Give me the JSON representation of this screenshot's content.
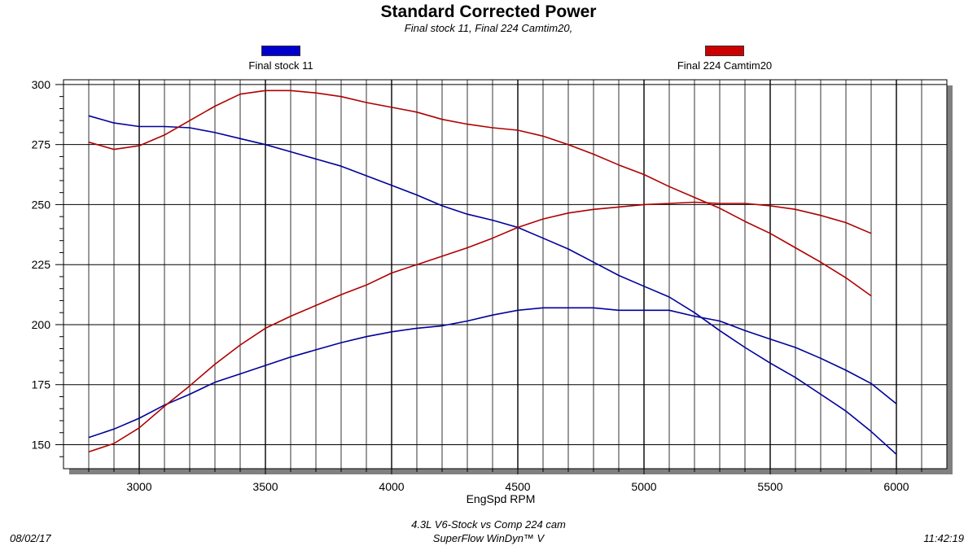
{
  "chart_data": {
    "type": "line",
    "title": "Standard Corrected Power",
    "subtitle": "Final stock 11,  Final 224 Camtim20,",
    "xlabel": "EngSpd RPM",
    "ylabel": "",
    "xlim": [
      2700,
      6200
    ],
    "ylim": [
      140,
      302
    ],
    "x_ticks": [
      3000,
      3500,
      4000,
      4500,
      5000,
      5500,
      6000
    ],
    "y_ticks": [
      150,
      175,
      200,
      225,
      250,
      275,
      300
    ],
    "grid": true,
    "legend": [
      {
        "name": "Final stock 11",
        "color": "#0000cc"
      },
      {
        "name": "Final 224 Camtim20",
        "color": "#cc0000"
      }
    ],
    "series": [
      {
        "name": "Final stock 11",
        "measure": "torque",
        "color": "#00009a",
        "x": [
          2800,
          2900,
          3000,
          3100,
          3200,
          3300,
          3400,
          3500,
          3600,
          3700,
          3800,
          3900,
          4000,
          4100,
          4200,
          4300,
          4400,
          4500,
          4600,
          4700,
          4800,
          4900,
          5000,
          5100,
          5200,
          5300,
          5400,
          5500,
          5600,
          5700,
          5800,
          5900,
          6000
        ],
        "y": [
          287,
          284,
          282.5,
          282.5,
          282,
          280,
          277.5,
          275,
          272,
          269,
          266,
          262,
          258,
          254,
          249.5,
          246,
          243.5,
          240.5,
          236,
          231.5,
          226,
          220.5,
          216,
          211.5,
          205,
          197.5,
          190.5,
          184,
          178,
          171,
          164,
          155.5,
          146
        ]
      },
      {
        "name": "Final stock 11",
        "measure": "power",
        "color": "#00009a",
        "x": [
          2800,
          2900,
          3000,
          3100,
          3200,
          3300,
          3400,
          3500,
          3600,
          3700,
          3800,
          3900,
          4000,
          4100,
          4200,
          4300,
          4400,
          4500,
          4600,
          4700,
          4800,
          4900,
          5000,
          5100,
          5200,
          5300,
          5400,
          5500,
          5600,
          5700,
          5800,
          5900,
          6000
        ],
        "y": [
          153,
          156.5,
          161,
          166.5,
          171,
          176,
          179.5,
          183,
          186.5,
          189.5,
          192.5,
          195,
          197,
          198.5,
          199.5,
          201.5,
          204,
          206,
          207,
          207,
          207,
          206,
          206,
          206,
          203.5,
          201.5,
          197.5,
          194,
          190.5,
          186,
          181,
          175.5,
          167
        ]
      },
      {
        "name": "Final 224 Camtim20",
        "measure": "torque",
        "color": "#b00000",
        "x": [
          2800,
          2900,
          3000,
          3100,
          3200,
          3300,
          3400,
          3500,
          3600,
          3700,
          3800,
          3900,
          4000,
          4100,
          4200,
          4300,
          4400,
          4500,
          4600,
          4700,
          4800,
          4900,
          5000,
          5100,
          5200,
          5300,
          5400,
          5500,
          5600,
          5700,
          5800,
          5900
        ],
        "y": [
          276,
          273,
          274.5,
          279,
          285,
          291,
          296,
          297.5,
          297.5,
          296.5,
          295,
          292.5,
          290.5,
          288.5,
          285.5,
          283.5,
          282,
          281,
          278.5,
          275,
          271,
          266.5,
          262.5,
          257.5,
          253,
          248.5,
          243,
          238,
          232,
          226,
          219.5,
          212
        ]
      },
      {
        "name": "Final 224 Camtim20",
        "measure": "power",
        "color": "#b00000",
        "x": [
          2800,
          2900,
          3000,
          3100,
          3200,
          3300,
          3400,
          3500,
          3600,
          3700,
          3800,
          3900,
          4000,
          4100,
          4200,
          4300,
          4400,
          4500,
          4600,
          4700,
          4800,
          4900,
          5000,
          5100,
          5200,
          5300,
          5400,
          5500,
          5600,
          5700,
          5800,
          5900
        ],
        "y": [
          147,
          150.5,
          157,
          166,
          174.5,
          183.5,
          191.5,
          198.5,
          203.5,
          208,
          212.5,
          216.5,
          221.5,
          225,
          228.5,
          232,
          236,
          240.5,
          244,
          246.5,
          248,
          249,
          250,
          250.5,
          251,
          250.5,
          250.5,
          249.5,
          248,
          245.5,
          242.5,
          238
        ]
      }
    ]
  },
  "footer": {
    "date": "08/02/17",
    "description": "4.3L V6-Stock vs Comp 224 cam",
    "software": "SuperFlow WinDyn™ V",
    "time": "11:42:19"
  }
}
